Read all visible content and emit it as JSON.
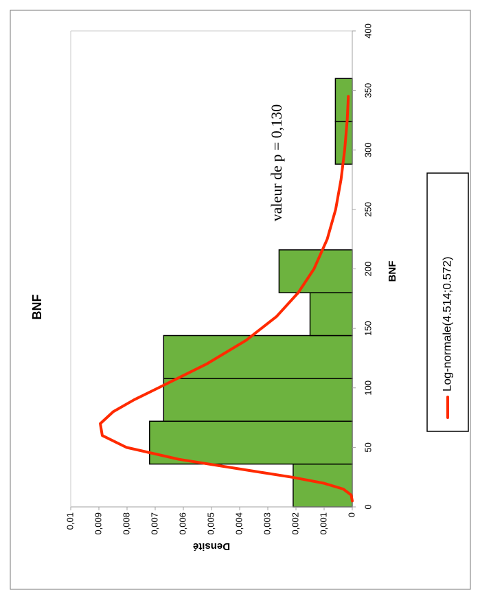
{
  "chart_data": {
    "type": "histogram",
    "title": "BNF",
    "x_label": "BNF",
    "y_label": "Densité",
    "annotation": "valeur de p = 0,130",
    "bins": [
      0,
      36,
      72,
      108,
      144,
      180,
      216,
      252,
      288,
      324,
      360
    ],
    "values": [
      0.0021,
      0.0072,
      0.0067,
      0.0067,
      0.0015,
      0.0026,
      0,
      0,
      0.0006,
      0.0006
    ],
    "color": "#6db33f",
    "series": [
      {
        "name": "Log-normale(4.514;0.572)",
        "color": "#ff2a00",
        "x": [
          5,
          10,
          15,
          20,
          25,
          30,
          40,
          50,
          60,
          70,
          80,
          90,
          100,
          120,
          140,
          160,
          180,
          200,
          225,
          250,
          275,
          300,
          325,
          345
        ],
        "values": [
          0,
          4e-05,
          0.00032,
          0.00103,
          0.00215,
          0.0035,
          0.00616,
          0.00802,
          0.00888,
          0.00895,
          0.00849,
          0.00775,
          0.00689,
          0.00518,
          0.00377,
          0.00269,
          0.00192,
          0.00136,
          0.00089,
          0.00059,
          0.0004,
          0.00027,
          0.00018,
          0.00014
        ]
      }
    ],
    "xlim": [
      0,
      400
    ],
    "xticks": [
      0,
      50,
      100,
      150,
      200,
      250,
      300,
      350,
      400
    ],
    "ylim": [
      0,
      0.01
    ],
    "yticks": [
      0,
      {
        "value": 0.001,
        "label": "0,001"
      },
      {
        "value": 0.002,
        "label": "0,002"
      },
      {
        "value": 0.003,
        "label": "0,003"
      },
      {
        "value": 0.004,
        "label": "0,004"
      },
      {
        "value": 0.005,
        "label": "0,005"
      },
      {
        "value": 0.006,
        "label": "0,006"
      },
      {
        "value": 0.007,
        "label": "0,007"
      },
      {
        "value": 0.008,
        "label": "0,008"
      },
      {
        "value": 0.009,
        "label": "0,009"
      },
      {
        "value": 0.01,
        "label": "0,01"
      }
    ]
  }
}
